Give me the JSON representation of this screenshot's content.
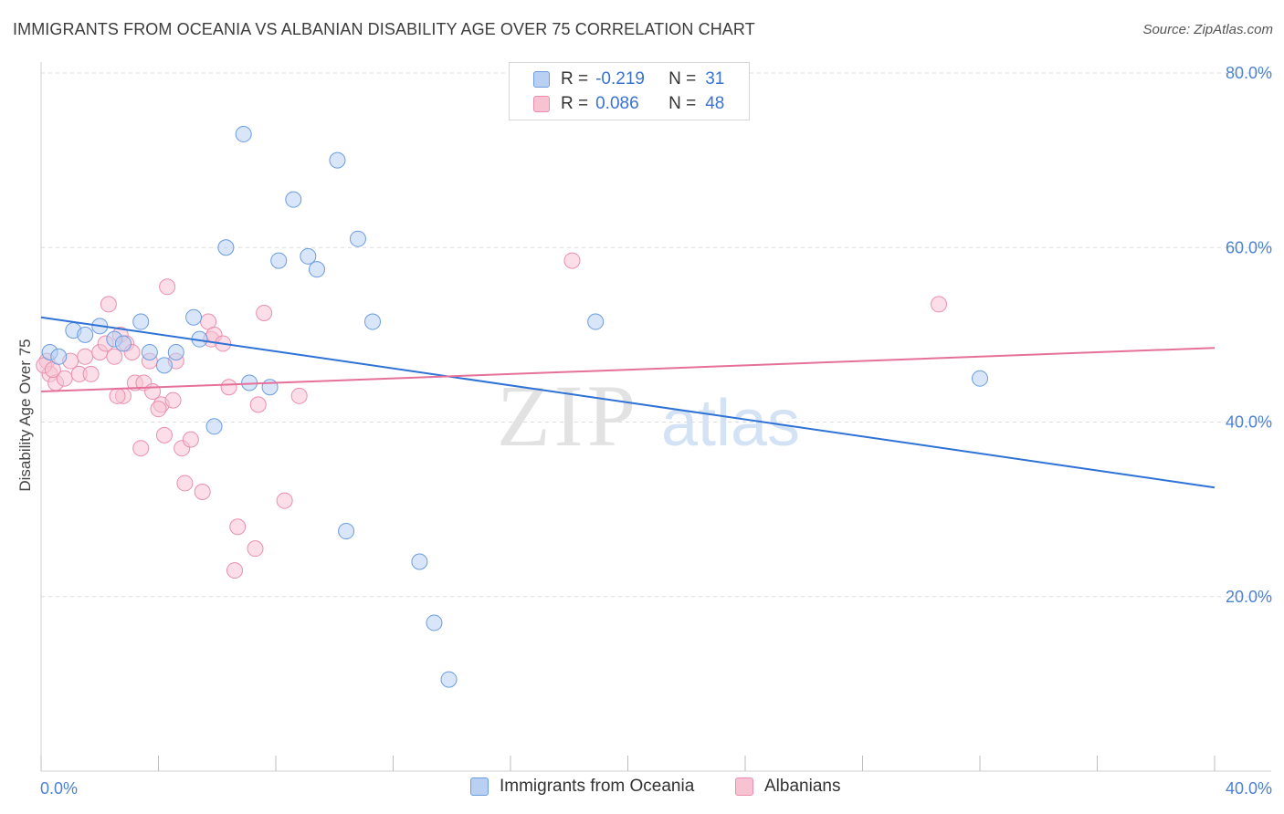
{
  "title": "IMMIGRANTS FROM OCEANIA VS ALBANIAN DISABILITY AGE OVER 75 CORRELATION CHART",
  "source": "Source: ZipAtlas.com",
  "watermark": {
    "zip": "ZIP",
    "atlas": "atlas"
  },
  "colors": {
    "blue_fill": "#b9d0f2",
    "blue_stroke": "#6b9de0",
    "blue_line": "#2f72d6",
    "pink_fill": "#f7c3d3",
    "pink_stroke": "#ea8fae",
    "pink_line": "#e5719a",
    "axis_text": "#4c82d4",
    "grid": "#dcdcdc"
  },
  "legend": {
    "rows": [
      {
        "series": "blue",
        "r_label": "R =",
        "r_value": "-0.219",
        "n_label": "N =",
        "n_value": "31"
      },
      {
        "series": "pink",
        "r_label": "R =",
        "r_value": "0.086",
        "n_label": "N =",
        "n_value": "48"
      }
    ]
  },
  "bottom_legend": {
    "blue": "Immigrants from Oceania",
    "pink": "Albanians"
  },
  "chart_data": {
    "type": "scatter",
    "title": "IMMIGRANTS FROM OCEANIA VS ALBANIAN DISABILITY AGE OVER 75 CORRELATION CHART",
    "xlabel": "",
    "ylabel": "Disability Age Over 75",
    "xlim": [
      0,
      40
    ],
    "ylim": [
      0,
      80
    ],
    "x_tick_labels": [
      "0.0%",
      "40.0%"
    ],
    "y_ticks": [
      20,
      40,
      60,
      80
    ],
    "y_tick_labels": [
      "20.0%",
      "40.0%",
      "60.0%",
      "80.0%"
    ],
    "series": [
      {
        "name": "Immigrants from Oceania",
        "color": "blue",
        "points": [
          [
            0.3,
            48.0
          ],
          [
            0.6,
            47.5
          ],
          [
            1.1,
            50.5
          ],
          [
            1.5,
            50.0
          ],
          [
            2.0,
            51.0
          ],
          [
            2.5,
            49.5
          ],
          [
            2.8,
            49.0
          ],
          [
            3.4,
            51.5
          ],
          [
            3.7,
            48.0
          ],
          [
            4.2,
            46.5
          ],
          [
            4.6,
            48.0
          ],
          [
            5.2,
            52.0
          ],
          [
            5.4,
            49.5
          ],
          [
            5.9,
            39.5
          ],
          [
            6.3,
            60.0
          ],
          [
            6.9,
            73.0
          ],
          [
            7.1,
            44.5
          ],
          [
            7.8,
            44.0
          ],
          [
            8.1,
            58.5
          ],
          [
            8.6,
            65.5
          ],
          [
            9.1,
            59.0
          ],
          [
            9.4,
            57.5
          ],
          [
            10.1,
            70.0
          ],
          [
            10.4,
            27.5
          ],
          [
            10.8,
            61.0
          ],
          [
            11.3,
            51.5
          ],
          [
            12.9,
            24.0
          ],
          [
            13.4,
            17.0
          ],
          [
            13.9,
            10.5
          ],
          [
            18.9,
            51.5
          ],
          [
            32.0,
            45.0
          ]
        ],
        "trend": {
          "x": [
            0,
            40
          ],
          "y": [
            52.0,
            32.5
          ]
        }
      },
      {
        "name": "Albanians",
        "color": "pink",
        "points": [
          [
            0.2,
            47.0
          ],
          [
            0.3,
            45.5
          ],
          [
            0.5,
            44.5
          ],
          [
            0.8,
            45.0
          ],
          [
            1.0,
            47.0
          ],
          [
            1.3,
            45.5
          ],
          [
            1.5,
            47.5
          ],
          [
            1.7,
            45.5
          ],
          [
            2.0,
            48.0
          ],
          [
            2.2,
            49.0
          ],
          [
            2.3,
            53.5
          ],
          [
            2.5,
            47.5
          ],
          [
            2.7,
            50.0
          ],
          [
            2.8,
            43.0
          ],
          [
            2.9,
            49.0
          ],
          [
            3.1,
            48.0
          ],
          [
            3.2,
            44.5
          ],
          [
            3.4,
            37.0
          ],
          [
            3.5,
            44.5
          ],
          [
            3.7,
            47.0
          ],
          [
            3.8,
            43.5
          ],
          [
            4.1,
            42.0
          ],
          [
            4.2,
            38.5
          ],
          [
            4.3,
            55.5
          ],
          [
            4.5,
            42.5
          ],
          [
            4.6,
            47.0
          ],
          [
            4.8,
            37.0
          ],
          [
            4.9,
            33.0
          ],
          [
            5.1,
            38.0
          ],
          [
            5.5,
            32.0
          ],
          [
            5.7,
            51.5
          ],
          [
            5.8,
            49.5
          ],
          [
            5.9,
            50.0
          ],
          [
            6.2,
            49.0
          ],
          [
            6.4,
            44.0
          ],
          [
            6.6,
            23.0
          ],
          [
            6.7,
            28.0
          ],
          [
            7.3,
            25.5
          ],
          [
            7.4,
            42.0
          ],
          [
            7.6,
            52.5
          ],
          [
            8.3,
            31.0
          ],
          [
            8.8,
            43.0
          ],
          [
            18.1,
            58.5
          ],
          [
            30.6,
            53.5
          ],
          [
            0.1,
            46.5
          ],
          [
            0.4,
            46.0
          ],
          [
            2.6,
            43.0
          ],
          [
            4.0,
            41.5
          ]
        ],
        "trend": {
          "x": [
            0,
            40
          ],
          "y": [
            43.5,
            48.5
          ]
        }
      }
    ]
  }
}
